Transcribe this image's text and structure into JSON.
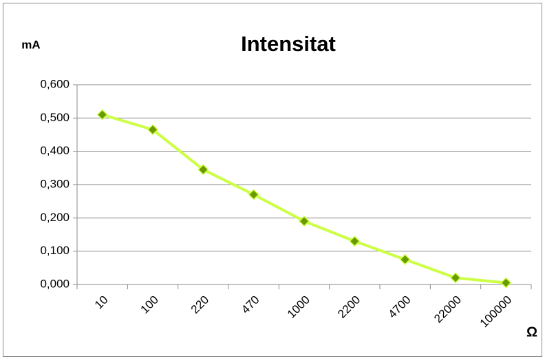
{
  "chart_data": {
    "type": "line",
    "title": "Intensitat",
    "y_label": "mA",
    "x_label": "Ω",
    "categories": [
      "10",
      "100",
      "220",
      "470",
      "1000",
      "2200",
      "4700",
      "22000",
      "100000"
    ],
    "series": [
      {
        "name": "Intensitat",
        "color": "#ccff44",
        "marker_color": "#6a9a00",
        "values": [
          0.51,
          0.465,
          0.345,
          0.27,
          0.19,
          0.13,
          0.075,
          0.02,
          0.005
        ]
      }
    ],
    "ylim": [
      0,
      0.6
    ],
    "yticks": [
      {
        "value": 0,
        "label": "0,000"
      },
      {
        "value": 0.1,
        "label": "0,100"
      },
      {
        "value": 0.2,
        "label": "0,200"
      },
      {
        "value": 0.3,
        "label": "0,300"
      },
      {
        "value": 0.4,
        "label": "0,400"
      },
      {
        "value": 0.5,
        "label": "0,500"
      },
      {
        "value": 0.6,
        "label": "0,600"
      }
    ],
    "grid": true,
    "legend": false
  }
}
